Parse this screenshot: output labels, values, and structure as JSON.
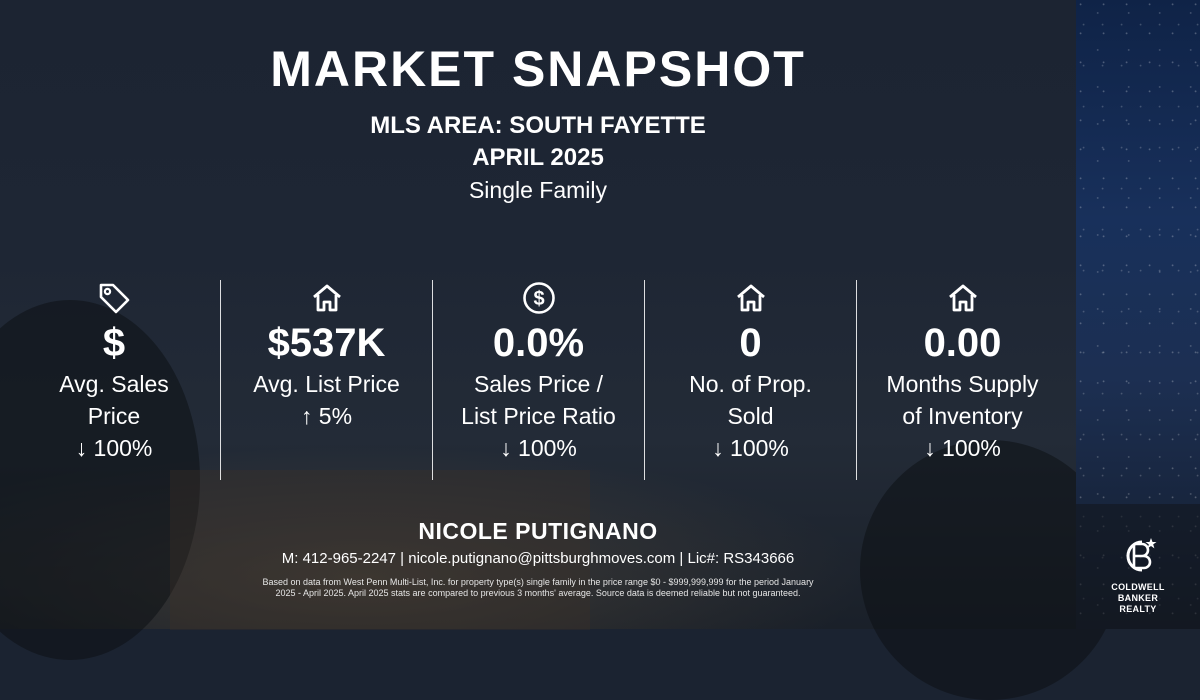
{
  "header": {
    "title": "MARKET SNAPSHOT",
    "area": "MLS AREA: SOUTH FAYETTE",
    "period": "APRIL 2025",
    "property_type": "Single Family"
  },
  "stats": [
    {
      "icon": "price-tag-icon",
      "value": "$",
      "label_line1": "Avg. Sales",
      "label_line2": "Price",
      "change": "↓ 100%"
    },
    {
      "icon": "house-icon",
      "value": "$537K",
      "label_line1": "Avg. List Price",
      "label_line2": "",
      "change": "↑ 5%"
    },
    {
      "icon": "dollar-circle-icon",
      "value": "0.0%",
      "label_line1": "Sales Price /",
      "label_line2": "List Price Ratio",
      "change": "↓ 100%"
    },
    {
      "icon": "house-icon",
      "value": "0",
      "label_line1": "No. of Prop.",
      "label_line2": "Sold",
      "change": "↓ 100%"
    },
    {
      "icon": "house-icon",
      "value": "0.00",
      "label_line1": "Months Supply",
      "label_line2": "of Inventory",
      "change": "↓ 100%"
    }
  ],
  "agent": {
    "name": "NICOLE PUTIGNANO",
    "contact": "M: 412-965-2247 | nicole.putignano@pittsburghmoves.com | Lic#: RS343666"
  },
  "disclaimer": {
    "line1": "Based on data from West Penn Multi-List, Inc. for property type(s) single family in the price range $0 - $999,999,999 for the period January",
    "line2": "2025 - April 2025. April 2025 stats are compared to previous 3 months' average. Source data is deemed reliable but not guaranteed."
  },
  "brand": {
    "line1": "COLDWELL",
    "line2": "BANKER",
    "line3": "REALTY"
  },
  "colors": {
    "background": "#1e2634",
    "side_panel": "#18305b",
    "text": "#ffffff"
  }
}
